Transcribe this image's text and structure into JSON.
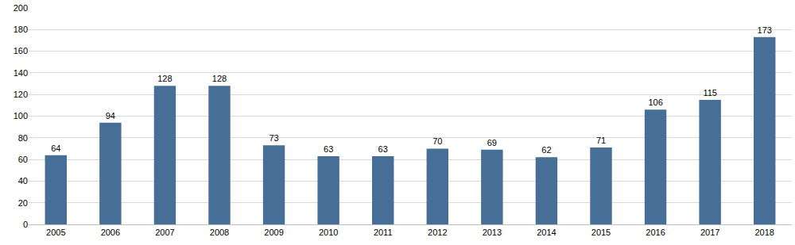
{
  "chart_data": {
    "type": "bar",
    "categories": [
      "2005",
      "2006",
      "2007",
      "2008",
      "2009",
      "2010",
      "2011",
      "2012",
      "2013",
      "2014",
      "2015",
      "2016",
      "2017",
      "2018"
    ],
    "values": [
      64,
      94,
      128,
      128,
      73,
      63,
      63,
      70,
      69,
      62,
      71,
      106,
      115,
      173
    ],
    "color": "#476e96",
    "ylim": [
      0,
      200
    ],
    "yticks": [
      0,
      20,
      40,
      60,
      80,
      100,
      120,
      140,
      160,
      180,
      200
    ],
    "grid": true,
    "data_labels": true
  }
}
